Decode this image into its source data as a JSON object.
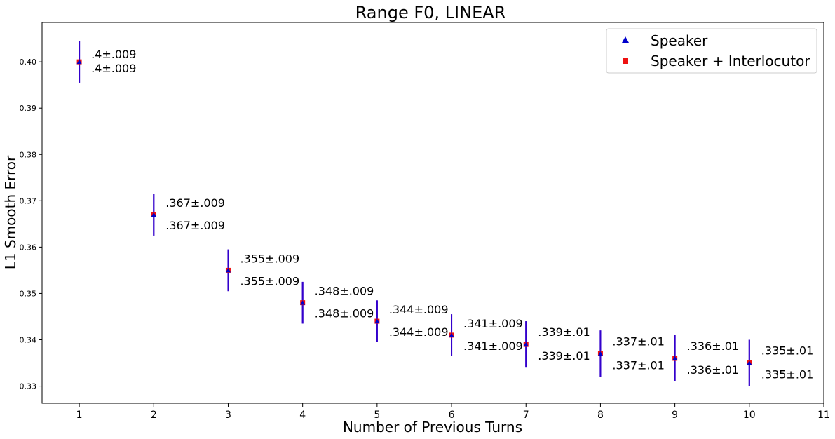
{
  "chart_data": {
    "type": "scatter",
    "title": "Range F0, LINEAR",
    "xlabel": "Number of Previous Turns",
    "ylabel": "L1 Smooth Error",
    "xlim": [
      0.5,
      11
    ],
    "ylim": [
      0.3263,
      0.4085
    ],
    "xticks": [
      1,
      2,
      3,
      4,
      5,
      6,
      7,
      8,
      9,
      10,
      11
    ],
    "yticks": [
      0.33,
      0.34,
      0.35,
      0.36,
      0.37,
      0.38,
      0.39,
      0.4
    ],
    "ytick_labels": [
      "0.33",
      "0.34",
      "0.35",
      "0.36",
      "0.37",
      "0.38",
      "0.39",
      "0.40"
    ],
    "grid": false,
    "legend_position": "top-right",
    "errorbar_color": "#3300cc",
    "x": [
      1,
      2,
      3,
      4,
      5,
      6,
      7,
      8,
      9,
      10
    ],
    "series": [
      {
        "name": "Speaker",
        "marker": "triangle",
        "color": "#0000cc",
        "values": [
          0.4,
          0.367,
          0.355,
          0.348,
          0.344,
          0.341,
          0.339,
          0.337,
          0.336,
          0.335
        ],
        "errors": [
          0.0045,
          0.0045,
          0.0045,
          0.0045,
          0.0045,
          0.0045,
          0.005,
          0.005,
          0.005,
          0.005
        ],
        "labels": [
          ".4±.009",
          ".367±.009",
          ".355±.009",
          ".348±.009",
          ".344±.009",
          ".341±.009",
          ".339±.01",
          ".337±.01",
          ".336±.01",
          ".335±.01"
        ]
      },
      {
        "name": "Speaker + Interlocutor",
        "marker": "square",
        "color": "#ee1111",
        "values": [
          0.4,
          0.367,
          0.355,
          0.348,
          0.344,
          0.341,
          0.339,
          0.337,
          0.336,
          0.335
        ],
        "errors": [
          0.0045,
          0.0045,
          0.0045,
          0.0045,
          0.0045,
          0.0045,
          0.005,
          0.005,
          0.005,
          0.005
        ],
        "labels": [
          ".4±.009",
          ".367±.009",
          ".355±.009",
          ".348±.009",
          ".344±.009",
          ".341±.009",
          ".339±.01",
          ".337±.01",
          ".336±.01",
          ".335±.01"
        ]
      }
    ]
  }
}
